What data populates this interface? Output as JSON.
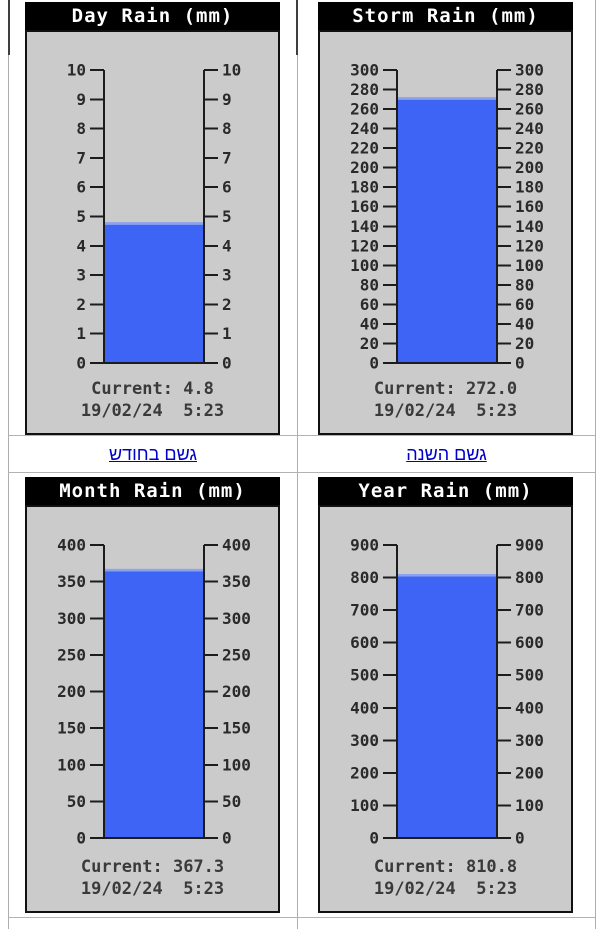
{
  "links": [
    {
      "label": "גשם בחודש"
    },
    {
      "label": "גשם השנה"
    }
  ],
  "chart_data": [
    {
      "type": "bar",
      "title": "Day Rain (mm)",
      "ylabel": "mm",
      "ylim": [
        0,
        10
      ],
      "tick_step": 1,
      "value": 4.8,
      "current_text": "Current: 4.8",
      "datetime_text": "19/02/24  5:23"
    },
    {
      "type": "bar",
      "title": "Storm Rain (mm)",
      "ylabel": "mm",
      "ylim": [
        0,
        300
      ],
      "tick_step": 20,
      "value": 272.0,
      "current_text": "Current: 272.0",
      "datetime_text": "19/02/24  5:23"
    },
    {
      "type": "bar",
      "title": "Month Rain (mm)",
      "ylabel": "mm",
      "ylim": [
        0,
        400
      ],
      "tick_step": 50,
      "value": 367.3,
      "current_text": "Current: 367.3",
      "datetime_text": "19/02/24  5:23"
    },
    {
      "type": "bar",
      "title": "Year Rain (mm)",
      "ylabel": "mm",
      "ylim": [
        0,
        900
      ],
      "tick_step": 100,
      "value": 810.8,
      "current_text": "Current: 810.8",
      "datetime_text": "19/02/24  5:23"
    }
  ],
  "colors": {
    "bar_blue": "#3d64f4",
    "bar_top_edge": "#8ba4ef",
    "panel_gray": "#cbcbcb",
    "title_bg": "#000000",
    "title_fg": "#ffffff",
    "axis": "#1c1c1c",
    "tick_label": "#2a2a2a",
    "link_blue": "#0000cc",
    "frame_border": "#aeaeae"
  }
}
